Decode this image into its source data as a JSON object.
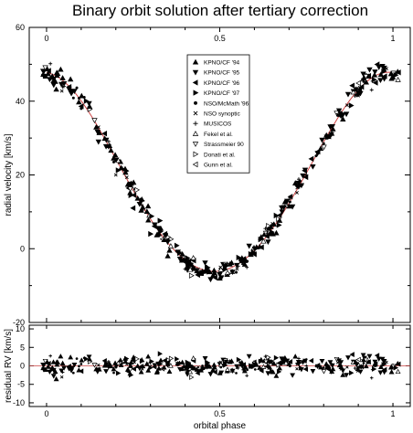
{
  "chart_data": {
    "type": "scatter",
    "title": "Binary orbit solution after tertiary correction",
    "xlabel": "orbital phase",
    "x_ticks": [
      "0",
      "0.5",
      "1"
    ],
    "xlim": [
      -0.05,
      1.05
    ],
    "top_panel": {
      "ylabel": "radial velocity [km/s]",
      "ylim": [
        -20,
        60
      ],
      "y_ticks": [
        "-20",
        "0",
        "20",
        "40",
        "60"
      ],
      "model_curve": {
        "gamma": 19.5,
        "K": 27.0,
        "omega_deg": 5,
        "e": 0.05,
        "color": "#cc4444"
      }
    },
    "bottom_panel": {
      "ylabel": "residual RV [km/s]",
      "ylim": [
        -11,
        11
      ],
      "y_ticks": [
        "-10",
        "-5",
        "0",
        "5",
        "10"
      ]
    },
    "legend": {
      "placement": "top-center",
      "entries": [
        {
          "name": "KPNO/CF '94",
          "marker": "triangle-up"
        },
        {
          "name": "KPNO/CF '95",
          "marker": "triangle-down"
        },
        {
          "name": "KPNO/CF '96",
          "marker": "triangle-left"
        },
        {
          "name": "KPNO/CF '97",
          "marker": "triangle-right"
        },
        {
          "name": "NSO/McMath '96",
          "marker": "circle"
        },
        {
          "name": "NSO synoptic",
          "marker": "cross"
        },
        {
          "name": "MUSICOS",
          "marker": "plus"
        },
        {
          "name": "Fekel et al.",
          "marker": "triangle-up-open"
        },
        {
          "name": "Strassmeier 90",
          "marker": "triangle-down-open"
        },
        {
          "name": "Donati et al.",
          "marker": "triangle-right-open"
        },
        {
          "name": "Gunn et al.",
          "marker": "triangle-left-open"
        }
      ]
    },
    "sample_points": [
      {
        "phase": 0.02,
        "rv": 45.5,
        "resid": 1.0,
        "set": 0
      },
      {
        "phase": 0.05,
        "rv": 44.0,
        "resid": -0.5,
        "set": 6
      },
      {
        "phase": 0.1,
        "rv": 38.0,
        "resid": 0.5,
        "set": 4
      },
      {
        "phase": 0.15,
        "rv": 29.0,
        "resid": -1.0,
        "set": 1
      },
      {
        "phase": 0.2,
        "rv": 20.0,
        "resid": 0.0,
        "set": 5
      },
      {
        "phase": 0.25,
        "rv": 11.0,
        "resid": 1.5,
        "set": 2
      },
      {
        "phase": 0.3,
        "rv": 4.0,
        "resid": -0.5,
        "set": 3
      },
      {
        "phase": 0.35,
        "rv": -2.0,
        "resid": 0.5,
        "set": 0
      },
      {
        "phase": 0.4,
        "rv": -5.5,
        "resid": -1.0,
        "set": 6
      },
      {
        "phase": 0.45,
        "rv": -7.0,
        "resid": 0.0,
        "set": 4
      },
      {
        "phase": 0.5,
        "rv": -7.0,
        "resid": 0.5,
        "set": 1
      },
      {
        "phase": 0.55,
        "rv": -5.5,
        "resid": -0.5,
        "set": 5
      },
      {
        "phase": 0.6,
        "rv": -1.5,
        "resid": 1.0,
        "set": 2
      },
      {
        "phase": 0.65,
        "rv": 4.5,
        "resid": -1.5,
        "set": 3
      },
      {
        "phase": 0.7,
        "rv": 11.5,
        "resid": 0.5,
        "set": 0
      },
      {
        "phase": 0.75,
        "rv": 20.0,
        "resid": 0.0,
        "set": 6
      },
      {
        "phase": 0.8,
        "rv": 28.5,
        "resid": -0.5,
        "set": 4
      },
      {
        "phase": 0.85,
        "rv": 36.0,
        "resid": 1.0,
        "set": 1
      },
      {
        "phase": 0.9,
        "rv": 41.5,
        "resid": -1.0,
        "set": 5
      },
      {
        "phase": 0.95,
        "rv": 45.0,
        "resid": 0.5,
        "set": 2
      },
      {
        "phase": 1.0,
        "rv": 46.5,
        "resid": 0.0,
        "set": 0
      }
    ]
  }
}
